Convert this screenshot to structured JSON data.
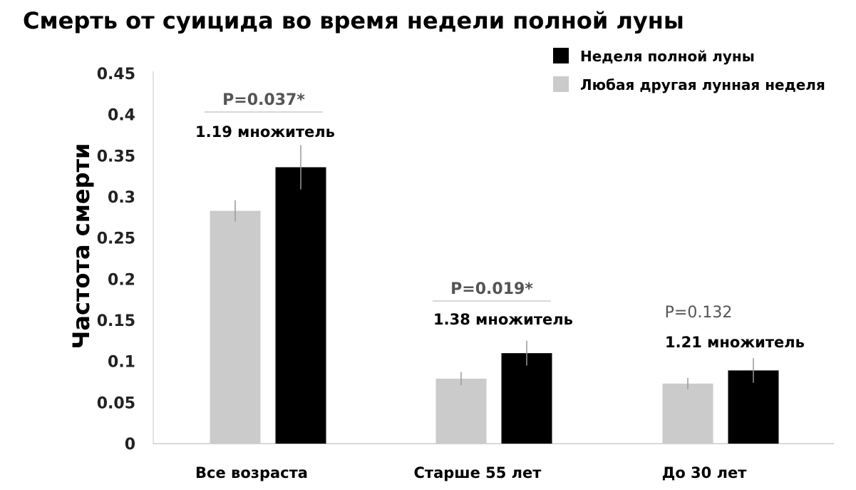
{
  "chart_data": {
    "type": "bar",
    "title": "Смерть от суицида во время недели полной луны",
    "xlabel": "",
    "ylabel": "Частота смерти",
    "ylim": [
      0,
      0.45
    ],
    "yticks": [
      "0",
      "0.05",
      "0.1",
      "0.15",
      "0.2",
      "0.25",
      "0.3",
      "0.35",
      "0.4",
      "0.45"
    ],
    "grid": false,
    "legend_position": "top-right",
    "categories": [
      "Все возраста",
      "Старше 55 лет",
      "До 30 лет"
    ],
    "series": [
      {
        "name": "Любая другая лунная неделя",
        "color": "#cbcbcb",
        "values": [
          0.283,
          0.079,
          0.073
        ],
        "errors": [
          0.013,
          0.008,
          0.007
        ]
      },
      {
        "name": "Неделя полной луны",
        "color": "#000000",
        "values": [
          0.336,
          0.11,
          0.089
        ],
        "errors": [
          0.027,
          0.015,
          0.015
        ]
      }
    ],
    "legend_order": [
      1,
      0
    ],
    "annotations": [
      {
        "p_value": "P=0.037*",
        "ratio": "1.19 множитель",
        "significant": true
      },
      {
        "p_value": "P=0.019*",
        "ratio": "1.38 множитель",
        "significant": true
      },
      {
        "p_value": "P=0.132",
        "ratio": "1.21 множитель",
        "significant": false
      }
    ]
  }
}
